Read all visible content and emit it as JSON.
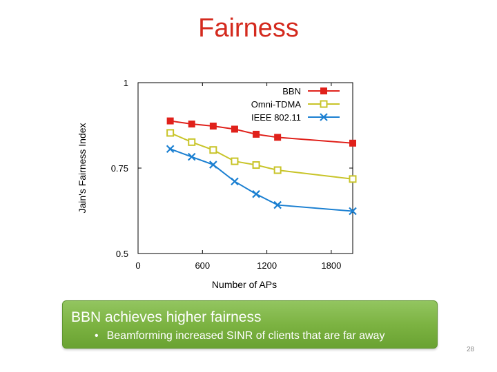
{
  "slide": {
    "title": "Fairness",
    "callout_heading": "BBN  achieves higher fairness",
    "bullet_symbol": "•",
    "callout_bullet": "Beamforming increased SINR of clients that are far away",
    "page_number": "28"
  },
  "colors": {
    "title": "#d42a1e",
    "callout_background": "#7cb342",
    "callout_text": "#ffffff"
  },
  "chart_data": {
    "type": "line",
    "title": "",
    "xlabel": "Number of APs",
    "ylabel": "Jain's Fairness Index",
    "xlim": [
      0,
      2000
    ],
    "ylim": [
      0.5,
      1.0
    ],
    "x_ticks": [
      "0",
      "600",
      "1200",
      "1800"
    ],
    "y_ticks": [
      "0.5",
      "0.75",
      "1"
    ],
    "grid": false,
    "legend_position": "top-right",
    "x": [
      300,
      500,
      700,
      900,
      1100,
      1300,
      2000
    ],
    "series": [
      {
        "name": "BBN",
        "color": "#e0211b",
        "marker": "filled-square",
        "values": [
          0.888,
          0.879,
          0.873,
          0.864,
          0.849,
          0.84,
          0.823
        ]
      },
      {
        "name": "Omni-TDMA",
        "color": "#c8c428",
        "marker": "open-square",
        "values": [
          0.853,
          0.826,
          0.803,
          0.77,
          0.759,
          0.744,
          0.718
        ]
      },
      {
        "name": "IEEE 802.11",
        "color": "#1a7fd1",
        "marker": "x",
        "values": [
          0.806,
          0.783,
          0.76,
          0.711,
          0.674,
          0.642,
          0.624
        ]
      }
    ]
  }
}
